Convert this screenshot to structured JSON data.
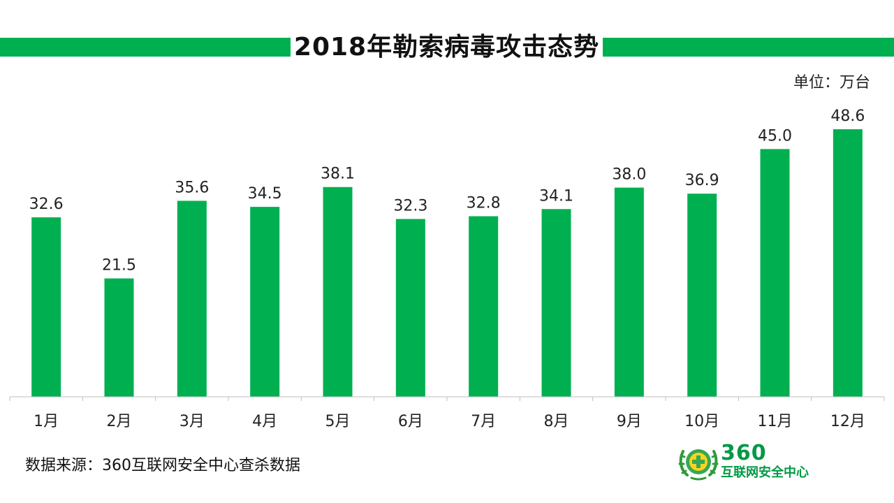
{
  "header": {
    "title": "2018年勒索病毒攻击态势",
    "unit": "单位：万台"
  },
  "footer": {
    "source": "数据来源：360互联网安全中心查杀数据",
    "logo_number": "360",
    "logo_name": "互联网安全中心"
  },
  "colors": {
    "bar": "#00b050",
    "title_bar": "#00b050",
    "logo": "#009944"
  },
  "chart_data": {
    "type": "bar",
    "categories": [
      "1月",
      "2月",
      "3月",
      "4月",
      "5月",
      "6月",
      "7月",
      "8月",
      "9月",
      "10月",
      "11月",
      "12月"
    ],
    "values": [
      32.6,
      21.5,
      35.6,
      34.5,
      38.1,
      32.3,
      32.8,
      34.1,
      38.0,
      36.9,
      45.0,
      48.6
    ],
    "value_labels": [
      "32.6",
      "21.5",
      "35.6",
      "34.5",
      "38.1",
      "32.3",
      "32.8",
      "34.1",
      "38.0",
      "36.9",
      "45.0",
      "48.6"
    ],
    "title": "2018年勒索病毒攻击态势",
    "xlabel": "",
    "ylabel": "",
    "grid": false,
    "legend": "none"
  }
}
